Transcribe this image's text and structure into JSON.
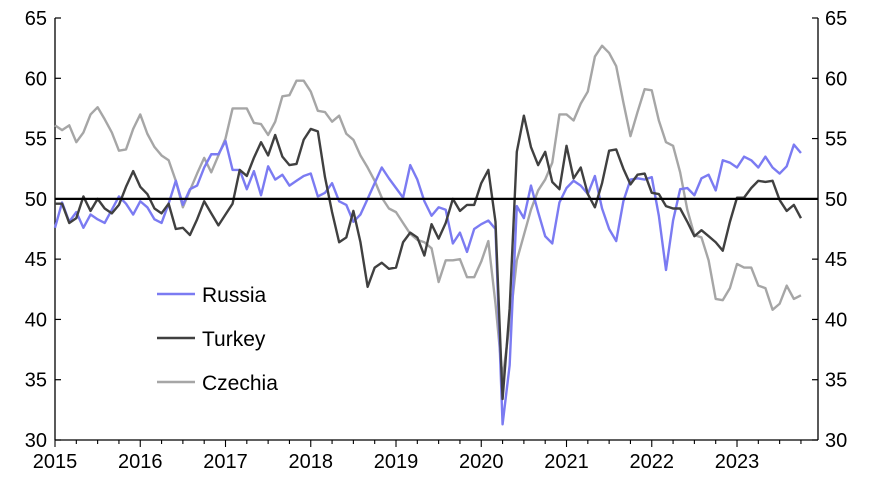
{
  "chart_data": {
    "type": "line",
    "title": "",
    "xlabel": "",
    "ylabel": "",
    "xlim": [
      2015.0,
      2023.95
    ],
    "ylim": [
      30,
      65
    ],
    "y_ticks": [
      30,
      35,
      40,
      45,
      50,
      55,
      60,
      65
    ],
    "x_ticks": [
      2015,
      2016,
      2017,
      2018,
      2019,
      2020,
      2021,
      2022,
      2023
    ],
    "y_axes": "left-and-right (mirrored)",
    "reference_line": 50,
    "grid": false,
    "legend_position": "bottom-left",
    "series": [
      {
        "name": "Russia",
        "color": "#7b7bf2",
        "x": [
          2015.0,
          2015.083,
          2015.167,
          2015.25,
          2015.333,
          2015.417,
          2015.5,
          2015.583,
          2015.667,
          2015.75,
          2015.833,
          2015.917,
          2016.0,
          2016.083,
          2016.167,
          2016.25,
          2016.333,
          2016.417,
          2016.5,
          2016.583,
          2016.667,
          2016.75,
          2016.833,
          2016.917,
          2017.0,
          2017.083,
          2017.167,
          2017.25,
          2017.333,
          2017.417,
          2017.5,
          2017.583,
          2017.667,
          2017.75,
          2017.833,
          2017.917,
          2018.0,
          2018.083,
          2018.167,
          2018.25,
          2018.333,
          2018.417,
          2018.5,
          2018.583,
          2018.667,
          2018.75,
          2018.833,
          2018.917,
          2019.0,
          2019.083,
          2019.167,
          2019.25,
          2019.333,
          2019.417,
          2019.5,
          2019.583,
          2019.667,
          2019.75,
          2019.833,
          2019.917,
          2020.0,
          2020.083,
          2020.167,
          2020.25,
          2020.333,
          2020.417,
          2020.5,
          2020.583,
          2020.667,
          2020.75,
          2020.833,
          2020.917,
          2021.0,
          2021.083,
          2021.167,
          2021.25,
          2021.333,
          2021.417,
          2021.5,
          2021.583,
          2021.667,
          2021.75,
          2021.833,
          2021.917,
          2022.0,
          2022.083,
          2022.167,
          2022.25,
          2022.333,
          2022.417,
          2022.5,
          2022.583,
          2022.667,
          2022.75,
          2022.833,
          2022.917,
          2023.0,
          2023.083,
          2023.167,
          2023.25,
          2023.333,
          2023.417,
          2023.5,
          2023.583,
          2023.667,
          2023.75
        ],
        "values": [
          47.6,
          49.7,
          48.1,
          48.9,
          47.6,
          48.7,
          48.3,
          48.0,
          49.1,
          50.2,
          49.6,
          48.7,
          49.8,
          49.3,
          48.3,
          48.0,
          49.6,
          51.5,
          49.5,
          50.8,
          51.1,
          52.6,
          53.7,
          53.7,
          54.8,
          52.4,
          52.4,
          50.8,
          52.3,
          50.3,
          52.7,
          51.6,
          52.0,
          51.1,
          51.5,
          51.9,
          52.1,
          50.2,
          50.5,
          51.3,
          49.8,
          49.5,
          48.1,
          48.7,
          50.0,
          51.3,
          52.6,
          51.7,
          50.9,
          50.1,
          52.8,
          51.6,
          49.8,
          48.6,
          49.3,
          49.1,
          46.3,
          47.2,
          45.6,
          47.5,
          47.9,
          48.2,
          47.5,
          31.3,
          36.2,
          49.4,
          48.4,
          51.1,
          48.9,
          46.9,
          46.3,
          49.7,
          50.9,
          51.5,
          51.1,
          50.4,
          51.9,
          49.2,
          47.5,
          46.5,
          49.8,
          51.6,
          51.7,
          51.6,
          51.8,
          48.6,
          44.1,
          48.2,
          50.8,
          50.9,
          50.3,
          51.7,
          52.0,
          50.7,
          53.2,
          53.0,
          52.6,
          53.5,
          53.2,
          52.6,
          53.5,
          52.6,
          52.1,
          52.7,
          54.5,
          53.8
        ]
      },
      {
        "name": "Turkey",
        "color": "#404040",
        "x": [
          2015.0,
          2015.083,
          2015.167,
          2015.25,
          2015.333,
          2015.417,
          2015.5,
          2015.583,
          2015.667,
          2015.75,
          2015.833,
          2015.917,
          2016.0,
          2016.083,
          2016.167,
          2016.25,
          2016.333,
          2016.417,
          2016.5,
          2016.583,
          2016.667,
          2016.75,
          2016.833,
          2016.917,
          2017.0,
          2017.083,
          2017.167,
          2017.25,
          2017.333,
          2017.417,
          2017.5,
          2017.583,
          2017.667,
          2017.75,
          2017.833,
          2017.917,
          2018.0,
          2018.083,
          2018.167,
          2018.25,
          2018.333,
          2018.417,
          2018.5,
          2018.583,
          2018.667,
          2018.75,
          2018.833,
          2018.917,
          2019.0,
          2019.083,
          2019.167,
          2019.25,
          2019.333,
          2019.417,
          2019.5,
          2019.583,
          2019.667,
          2019.75,
          2019.833,
          2019.917,
          2020.0,
          2020.083,
          2020.167,
          2020.25,
          2020.333,
          2020.417,
          2020.5,
          2020.583,
          2020.667,
          2020.75,
          2020.833,
          2020.917,
          2021.0,
          2021.083,
          2021.167,
          2021.25,
          2021.333,
          2021.417,
          2021.5,
          2021.583,
          2021.667,
          2021.75,
          2021.833,
          2021.917,
          2022.0,
          2022.083,
          2022.167,
          2022.25,
          2022.333,
          2022.417,
          2022.5,
          2022.583,
          2022.667,
          2022.75,
          2022.833,
          2022.917,
          2023.0,
          2023.083,
          2023.167,
          2023.25,
          2023.333,
          2023.417,
          2023.5,
          2023.583,
          2023.667,
          2023.75
        ],
        "values": [
          49.6,
          49.6,
          48.0,
          48.4,
          50.2,
          49.0,
          50.0,
          49.2,
          48.8,
          49.5,
          51.0,
          52.3,
          51.0,
          50.4,
          49.2,
          48.8,
          49.6,
          47.5,
          47.6,
          47.0,
          48.3,
          49.8,
          48.8,
          47.8,
          48.7,
          49.6,
          52.4,
          51.9,
          53.4,
          54.7,
          53.6,
          55.3,
          53.5,
          52.8,
          52.9,
          54.9,
          55.8,
          55.6,
          51.8,
          48.9,
          46.4,
          46.8,
          49.0,
          46.4,
          42.7,
          44.3,
          44.7,
          44.2,
          44.3,
          46.4,
          47.2,
          46.8,
          45.3,
          47.9,
          46.7,
          48.0,
          50.0,
          49.0,
          49.5,
          49.5,
          51.3,
          52.4,
          48.1,
          33.4,
          40.9,
          53.9,
          56.9,
          54.3,
          52.8,
          53.9,
          51.4,
          50.8,
          54.4,
          51.7,
          52.6,
          50.4,
          49.3,
          51.3,
          54.0,
          54.1,
          52.5,
          51.2,
          52.0,
          52.1,
          50.5,
          50.4,
          49.4,
          49.2,
          49.2,
          48.1,
          46.9,
          47.4,
          46.9,
          46.4,
          45.7,
          48.1,
          50.1,
          50.1,
          50.9,
          51.5,
          51.4,
          51.5,
          49.9,
          49.0,
          49.5,
          48.4
        ]
      },
      {
        "name": "Czechia",
        "color": "#a6a6a6",
        "x": [
          2015.0,
          2015.083,
          2015.167,
          2015.25,
          2015.333,
          2015.417,
          2015.5,
          2015.583,
          2015.667,
          2015.75,
          2015.833,
          2015.917,
          2016.0,
          2016.083,
          2016.167,
          2016.25,
          2016.333,
          2016.417,
          2016.5,
          2016.583,
          2016.667,
          2016.75,
          2016.833,
          2016.917,
          2017.0,
          2017.083,
          2017.167,
          2017.25,
          2017.333,
          2017.417,
          2017.5,
          2017.583,
          2017.667,
          2017.75,
          2017.833,
          2017.917,
          2018.0,
          2018.083,
          2018.167,
          2018.25,
          2018.333,
          2018.417,
          2018.5,
          2018.583,
          2018.667,
          2018.75,
          2018.833,
          2018.917,
          2019.0,
          2019.083,
          2019.167,
          2019.25,
          2019.333,
          2019.417,
          2019.5,
          2019.583,
          2019.667,
          2019.75,
          2019.833,
          2019.917,
          2020.0,
          2020.083,
          2020.167,
          2020.25,
          2020.333,
          2020.417,
          2020.5,
          2020.583,
          2020.667,
          2020.75,
          2020.833,
          2020.917,
          2021.0,
          2021.083,
          2021.167,
          2021.25,
          2021.333,
          2021.417,
          2021.5,
          2021.583,
          2021.667,
          2021.75,
          2021.833,
          2021.917,
          2022.0,
          2022.083,
          2022.167,
          2022.25,
          2022.333,
          2022.417,
          2022.5,
          2022.583,
          2022.667,
          2022.75,
          2022.833,
          2022.917,
          2023.0,
          2023.083,
          2023.167,
          2023.25,
          2023.333,
          2023.417,
          2023.5,
          2023.583,
          2023.667,
          2023.75
        ],
        "values": [
          56.1,
          55.7,
          56.1,
          54.7,
          55.5,
          57.0,
          57.6,
          56.6,
          55.5,
          54.0,
          54.1,
          55.8,
          57.0,
          55.4,
          54.3,
          53.6,
          53.2,
          51.5,
          49.3,
          50.7,
          52.1,
          53.4,
          52.2,
          53.6,
          55.0,
          57.5,
          57.5,
          57.5,
          56.3,
          56.2,
          55.3,
          56.4,
          58.5,
          58.6,
          59.8,
          59.8,
          58.9,
          57.3,
          57.2,
          56.4,
          56.9,
          55.4,
          54.9,
          53.6,
          52.6,
          51.5,
          50.1,
          49.2,
          48.9,
          48.0,
          47.1,
          46.6,
          46.4,
          45.9,
          43.1,
          44.9,
          44.9,
          45.0,
          43.5,
          43.5,
          44.8,
          46.5,
          41.3,
          35.1,
          39.6,
          44.9,
          47.0,
          49.1,
          50.7,
          51.6,
          53.0,
          57.0,
          57.0,
          56.5,
          57.9,
          58.9,
          61.8,
          62.7,
          62.1,
          61.0,
          58.0,
          55.2,
          57.2,
          59.1,
          59.0,
          56.5,
          54.7,
          54.4,
          52.2,
          49.1,
          47.0,
          46.8,
          44.9,
          41.7,
          41.6,
          42.6,
          44.6,
          44.3,
          44.3,
          42.8,
          42.6,
          40.8,
          41.3,
          42.8,
          41.7,
          42.0
        ]
      }
    ]
  }
}
